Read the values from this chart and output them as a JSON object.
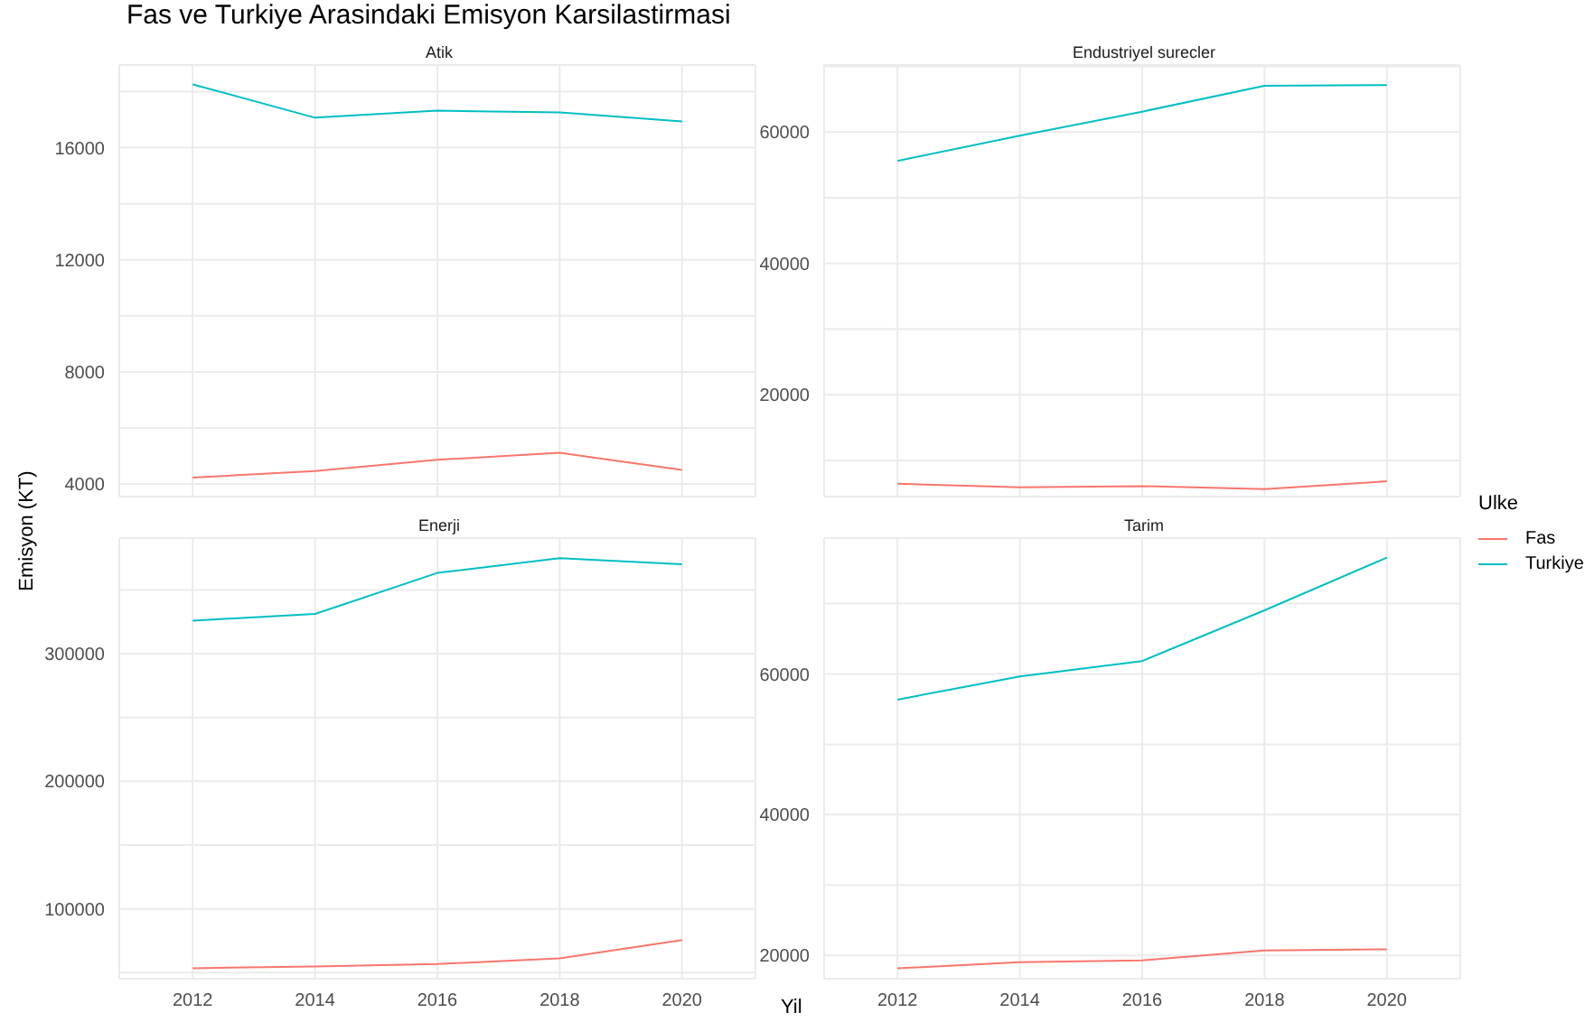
{
  "chart_data": [
    {
      "type": "line",
      "title": "Fas ve Turkiye Arasindaki Emisyon Karsilastirmasi",
      "subtitle": "Atik",
      "ylabel": "Emisyon (KT)",
      "x": [
        2012,
        2014,
        2016,
        2018,
        2020
      ],
      "series": [
        {
          "color": "#f8766d",
          "values": [
            4230,
            4460,
            4860,
            5110,
            4500
          ]
        },
        {
          "color": "#00bfc4",
          "values": [
            18260,
            17070,
            17320,
            17260,
            16940
          ]
        }
      ],
      "xlim": [
        2010.8,
        2021.2
      ],
      "xticks": [
        2012,
        2014,
        2016,
        2018,
        2020
      ],
      "ylim": [
        3550,
        18950
      ],
      "yticks": [
        4000,
        {
          "value": 6000,
          "label": null
        },
        8000,
        {
          "value": 10000,
          "label": null
        },
        12000,
        {
          "value": 14000,
          "label": null
        },
        16000,
        {
          "value": 18000,
          "label": null
        }
      ],
      "grid": true,
      "tick_labels": "y"
    },
    {
      "type": "line",
      "subtitle": "Endustriyel surecler",
      "legend": "right",
      "legend_title": "Ulke",
      "x": [
        2012,
        2014,
        2016,
        2018,
        2020
      ],
      "series": [
        {
          "name": "Fas",
          "color": "#f8766d",
          "values": [
            6460,
            5910,
            6090,
            5640,
            6820
          ]
        },
        {
          "name": "Turkiye",
          "color": "#00bfc4",
          "values": [
            55600,
            59450,
            63100,
            67050,
            67150
          ]
        }
      ],
      "xlim": [
        2010.8,
        2021.2
      ],
      "xticks": [
        2012,
        2014,
        2016,
        2018,
        2020
      ],
      "ylim": [
        4500,
        70200
      ],
      "yticks": [
        {
          "value": 10000,
          "label": null
        },
        20000,
        {
          "value": 30000,
          "label": null
        },
        40000,
        {
          "value": 50000,
          "label": null
        },
        60000,
        {
          "value": 70000,
          "label": null
        }
      ],
      "grid": true,
      "tick_labels": "y"
    },
    {
      "type": "line",
      "subtitle": "Enerji",
      "x": [
        2012,
        2014,
        2016,
        2018,
        2020
      ],
      "series": [
        {
          "color": "#f8766d",
          "values": [
            53500,
            54900,
            56800,
            61200,
            75500
          ]
        },
        {
          "color": "#00bfc4",
          "values": [
            325900,
            331200,
            363300,
            374800,
            370000
          ]
        }
      ],
      "xlim": [
        2010.8,
        2021.2
      ],
      "xticks": [
        2012,
        2014,
        2016,
        2018,
        2020
      ],
      "ylim": [
        45300,
        390600
      ],
      "yticks": [
        {
          "value": 50000,
          "label": null
        },
        100000,
        {
          "value": 150000,
          "label": null
        },
        200000,
        {
          "value": 250000,
          "label": null
        },
        300000,
        {
          "value": 350000,
          "label": null
        }
      ],
      "grid": true
    },
    {
      "type": "line",
      "subtitle": "Tarim",
      "xlabel": "Yil",
      "x": [
        2012,
        2014,
        2016,
        2018,
        2020
      ],
      "series": [
        {
          "color": "#f8766d",
          "values": [
            18170,
            19040,
            19300,
            20700,
            20870
          ]
        },
        {
          "color": "#00bfc4",
          "values": [
            56350,
            59650,
            61830,
            69040,
            76520
          ]
        }
      ],
      "xlim": [
        2010.8,
        2021.2
      ],
      "xticks": [
        2012,
        2014,
        2016,
        2018,
        2020
      ],
      "ylim": [
        16700,
        79300
      ],
      "yticks": [
        20000,
        {
          "value": 30000,
          "label": null
        },
        40000,
        {
          "value": 50000,
          "label": null
        },
        60000,
        {
          "value": 70000,
          "label": null
        }
      ],
      "grid": true
    }
  ]
}
